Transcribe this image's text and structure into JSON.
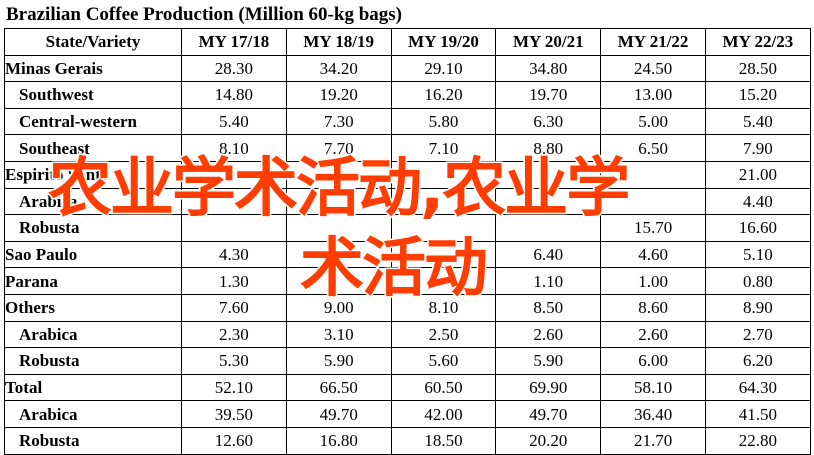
{
  "title": "Brazilian Coffee Production (Million 60-kg bags)",
  "table": {
    "header": [
      "State/Variety",
      "MY 17/18",
      "MY 18/19",
      "MY 19/20",
      "MY 20/21",
      "MY 21/22",
      "MY 22/23"
    ],
    "rows": [
      {
        "label": "Minas Gerais",
        "level": 0,
        "values": [
          "28.30",
          "34.20",
          "29.10",
          "34.80",
          "24.50",
          "28.50"
        ]
      },
      {
        "label": "Southwest",
        "level": 1,
        "values": [
          "14.80",
          "19.20",
          "16.20",
          "19.70",
          "13.00",
          "15.20"
        ]
      },
      {
        "label": "Central-western",
        "level": 1,
        "values": [
          "5.40",
          "7.30",
          "5.80",
          "6.30",
          "5.00",
          "5.40"
        ]
      },
      {
        "label": "Southeast",
        "level": 1,
        "values": [
          "8.10",
          "7.70",
          "7.10",
          "8.80",
          "6.50",
          "7.90"
        ]
      },
      {
        "label": "Espirito Santo",
        "level": 0,
        "values": [
          "",
          "",
          "",
          "",
          "",
          "21.00"
        ]
      },
      {
        "label": "Arabica",
        "level": 1,
        "values": [
          "",
          "",
          "",
          "",
          "",
          "4.40"
        ]
      },
      {
        "label": "Robusta",
        "level": 1,
        "values": [
          "",
          "",
          "",
          "",
          "15.70",
          "16.60"
        ]
      },
      {
        "label": "Sao Paulo",
        "level": 0,
        "values": [
          "4.30",
          "",
          "",
          "6.40",
          "4.60",
          "5.10"
        ]
      },
      {
        "label": "Parana",
        "level": 0,
        "values": [
          "1.30",
          "",
          "",
          "1.10",
          "1.00",
          "0.80"
        ]
      },
      {
        "label": "Others",
        "level": 0,
        "values": [
          "7.60",
          "9.00",
          "8.10",
          "8.50",
          "8.60",
          "8.90"
        ]
      },
      {
        "label": "Arabica",
        "level": 1,
        "values": [
          "2.30",
          "3.10",
          "2.50",
          "2.60",
          "2.60",
          "2.70"
        ]
      },
      {
        "label": "Robusta",
        "level": 1,
        "values": [
          "5.30",
          "5.90",
          "5.60",
          "5.90",
          "6.00",
          "6.20"
        ]
      },
      {
        "label": "Total",
        "level": 0,
        "values": [
          "52.10",
          "66.50",
          "60.50",
          "69.90",
          "58.10",
          "64.30"
        ]
      },
      {
        "label": "Arabica",
        "level": 1,
        "values": [
          "39.50",
          "49.70",
          "42.00",
          "49.70",
          "36.40",
          "41.50"
        ]
      },
      {
        "label": "Robusta",
        "level": 1,
        "values": [
          "12.60",
          "16.80",
          "18.50",
          "20.20",
          "21.70",
          "22.80"
        ]
      }
    ]
  },
  "watermark": {
    "line1": "农业学术活动,农业学",
    "line2": "术活动",
    "color": "#ff3d00"
  }
}
